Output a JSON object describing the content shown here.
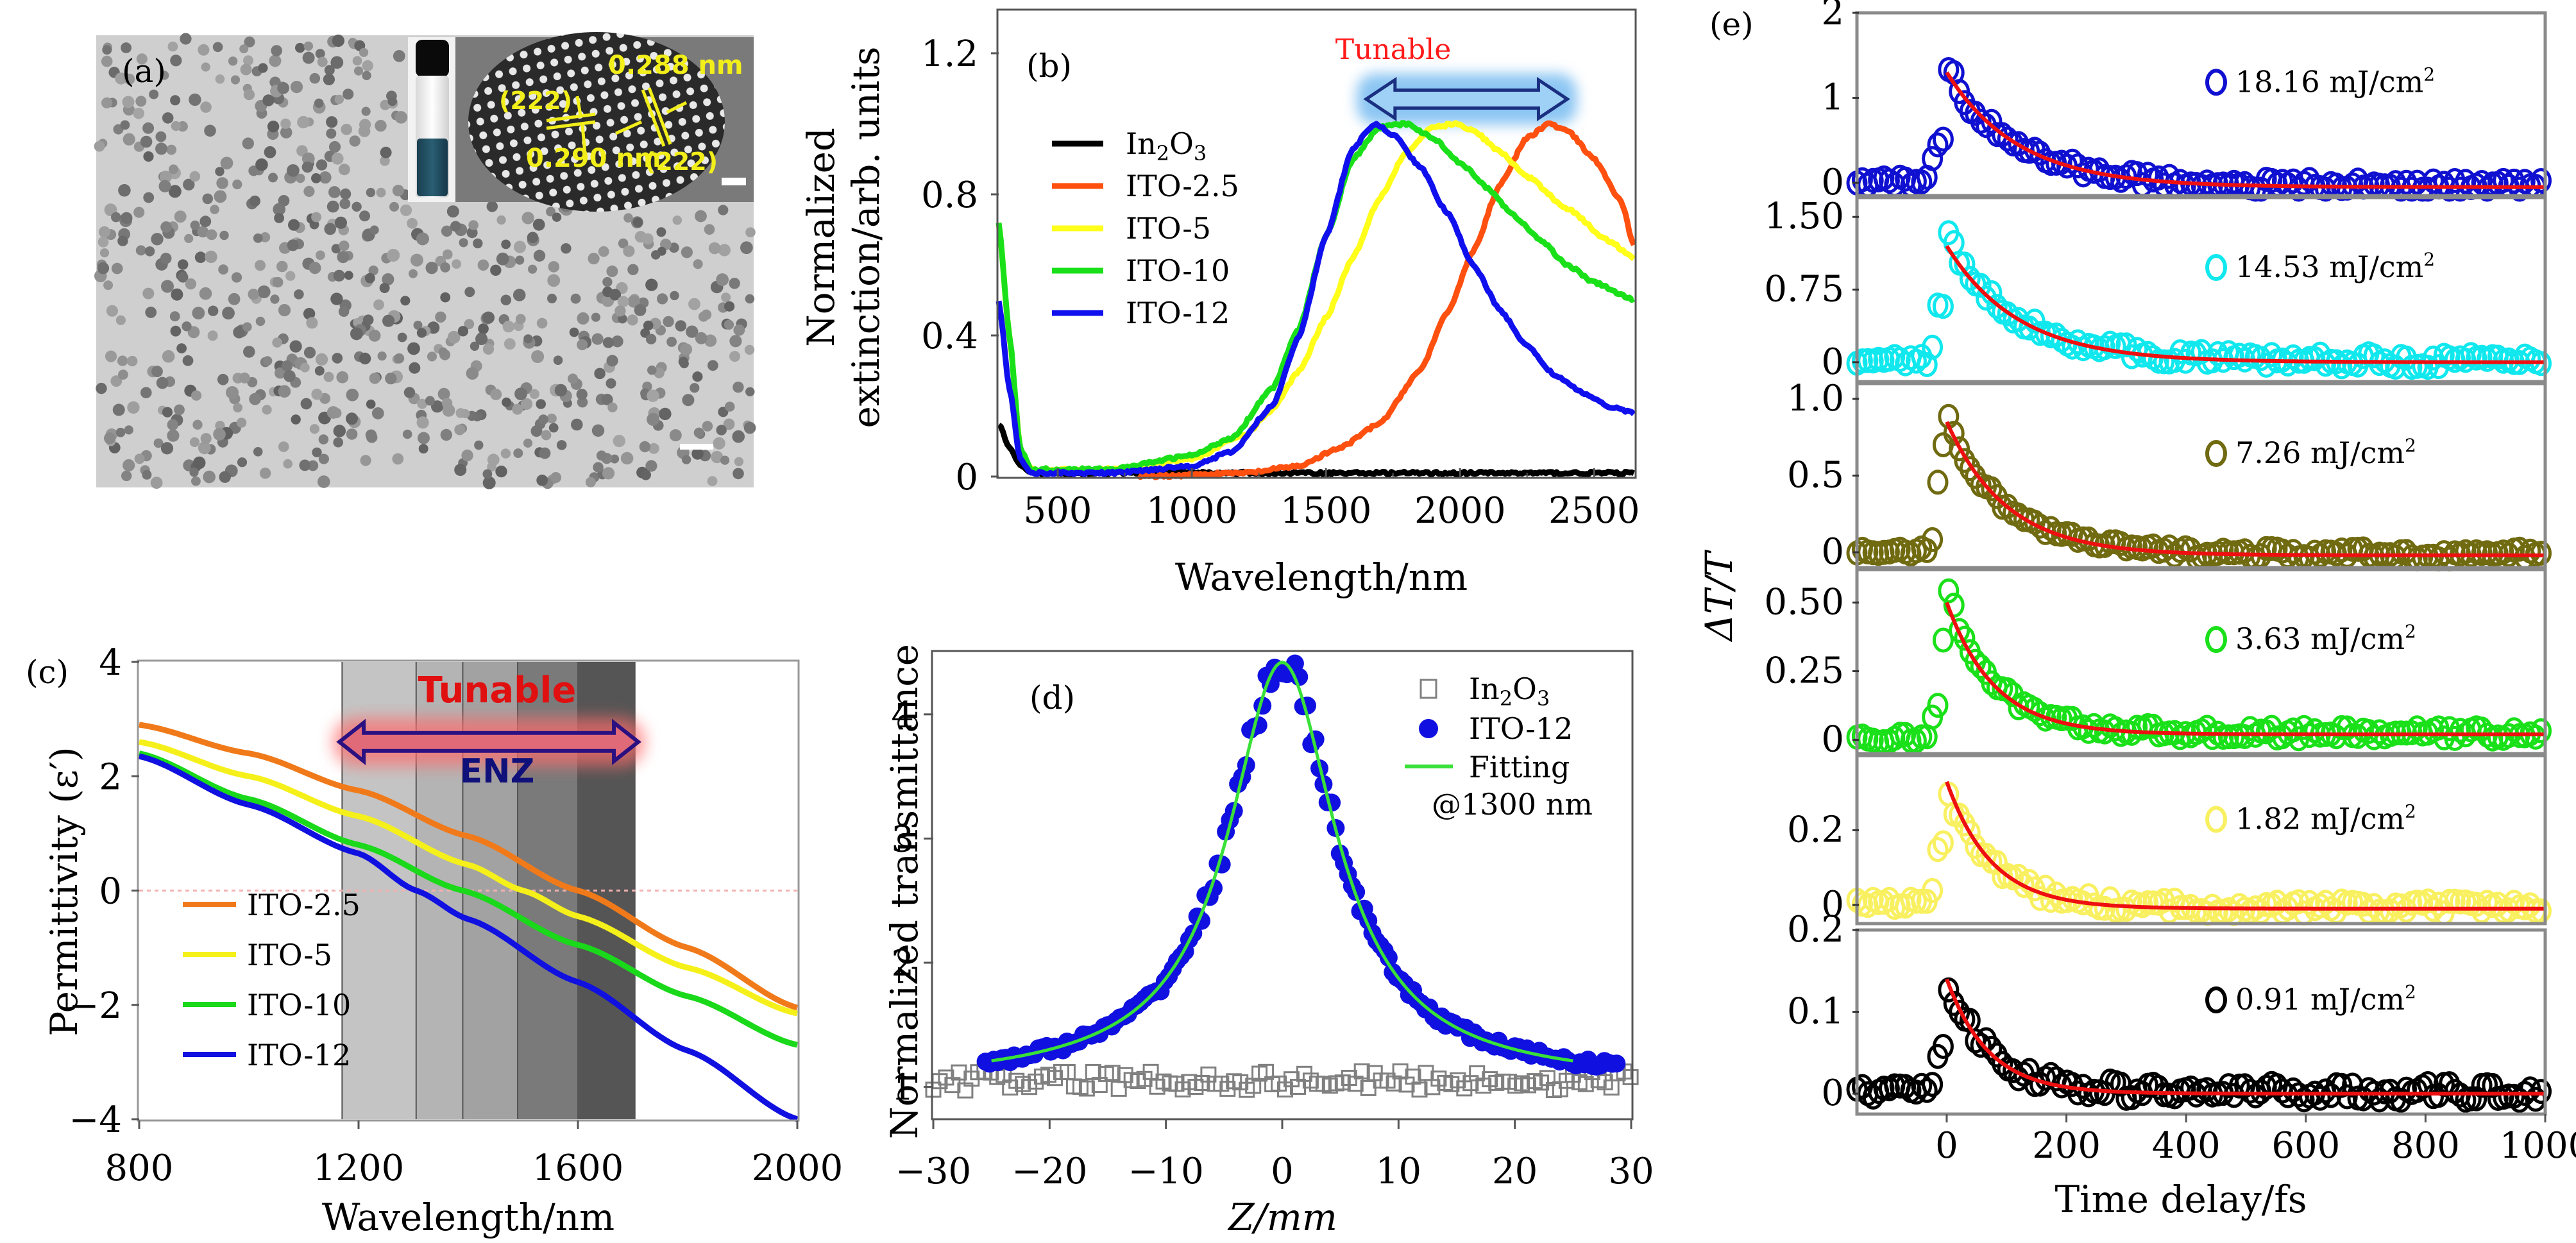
{
  "figure": {
    "panels": [
      "(a)",
      "(b)",
      "(c)",
      "(d)",
      "(e)"
    ]
  },
  "panel_a": {
    "label": "(a)",
    "description": "TEM image of nanocrystals with inset vial photo and HRTEM lattice image",
    "annotations": [
      "0.288 nm",
      "(222)",
      "(222)",
      "0.290 nm"
    ],
    "annotation_color": "#f2ee1a",
    "vial_liquid_color": "#1f4a5c"
  },
  "chart_data": [
    {
      "id": "b",
      "type": "line",
      "panel_label": "(b)",
      "title": "",
      "xlabel": "Wavelength/nm",
      "ylabel": "Normalized extinction/arb. units",
      "xlim": [
        280,
        2650
      ],
      "ylim": [
        0,
        1.3
      ],
      "xticks": [
        500,
        1000,
        1500,
        2000,
        2500
      ],
      "yticks": [
        0,
        0.4,
        0.8,
        1.2
      ],
      "ytick_labels": [
        "0",
        "0.4",
        "0.8",
        "1.2"
      ],
      "annotation": {
        "text": "Tunable",
        "color": "#ff1a1a",
        "arrow_from": 1650,
        "arrow_to": 2400,
        "arrow_y": 1.07
      },
      "legend_position": "upper-left",
      "series": [
        {
          "name": "In2O3",
          "label_main": "In",
          "label_sub1": "2",
          "label_mid": "O",
          "label_sub2": "3",
          "color": "#000000",
          "x": [
            280,
            320,
            360,
            400,
            450,
            600,
            1000,
            1500,
            2000,
            2300,
            2650
          ],
          "y": [
            0.15,
            0.08,
            0.03,
            0.01,
            0.01,
            0.01,
            0.01,
            0.01,
            0.01,
            0.01,
            0.01
          ]
        },
        {
          "name": "ITO-2.5",
          "color": "#ff5010",
          "x": [
            800,
            1200,
            1400,
            1550,
            1700,
            1850,
            1950,
            2050,
            2150,
            2250,
            2330,
            2400,
            2500,
            2600,
            2650
          ],
          "y": [
            0.0,
            0.01,
            0.03,
            0.08,
            0.15,
            0.3,
            0.46,
            0.64,
            0.83,
            0.96,
            1.0,
            0.98,
            0.9,
            0.78,
            0.65
          ]
        },
        {
          "name": "ITO-5",
          "color": "#ffff1a",
          "x": [
            280,
            320,
            360,
            400,
            450,
            700,
            1000,
            1200,
            1300,
            1400,
            1500,
            1600,
            1700,
            1800,
            1900,
            1980,
            2050,
            2150,
            2250,
            2400,
            2550,
            2650
          ],
          "y": [
            0.72,
            0.4,
            0.08,
            0.02,
            0.02,
            0.02,
            0.05,
            0.12,
            0.19,
            0.3,
            0.45,
            0.62,
            0.79,
            0.92,
            0.99,
            1.0,
            0.98,
            0.92,
            0.85,
            0.76,
            0.67,
            0.62
          ]
        },
        {
          "name": "ITO-10",
          "color": "#1ae01a",
          "x": [
            280,
            320,
            360,
            400,
            450,
            700,
            1000,
            1150,
            1300,
            1400,
            1500,
            1600,
            1700,
            1800,
            1900,
            2000,
            2100,
            2200,
            2300,
            2400,
            2500,
            2650
          ],
          "y": [
            0.72,
            0.4,
            0.08,
            0.02,
            0.02,
            0.02,
            0.06,
            0.11,
            0.25,
            0.42,
            0.68,
            0.9,
            0.99,
            1.0,
            0.96,
            0.89,
            0.82,
            0.74,
            0.67,
            0.6,
            0.55,
            0.5
          ]
        },
        {
          "name": "ITO-12",
          "color": "#1010ee",
          "x": [
            280,
            320,
            360,
            400,
            450,
            700,
            1000,
            1150,
            1300,
            1400,
            1500,
            1600,
            1680,
            1750,
            1850,
            1950,
            2050,
            2150,
            2250,
            2350,
            2450,
            2550,
            2650
          ],
          "y": [
            0.5,
            0.25,
            0.05,
            0.01,
            0.01,
            0.01,
            0.03,
            0.07,
            0.2,
            0.4,
            0.68,
            0.93,
            1.0,
            0.97,
            0.88,
            0.75,
            0.6,
            0.47,
            0.37,
            0.29,
            0.24,
            0.2,
            0.18
          ]
        }
      ]
    },
    {
      "id": "c",
      "type": "line",
      "panel_label": "(c)",
      "title": "",
      "xlabel": "Wavelength/nm",
      "ylabel": "Permittivity (ε′)",
      "xlim": [
        800,
        2000
      ],
      "ylim": [
        -4,
        4
      ],
      "xticks": [
        800,
        1200,
        1600,
        2000
      ],
      "yticks": [
        -4,
        -2,
        0,
        2,
        4
      ],
      "ytick_labels": [
        "−4",
        "−2",
        "0",
        "2",
        "4"
      ],
      "zero_line_color": "#f4b0b0",
      "shaded_bands": [
        {
          "from": 1170,
          "to": 1305,
          "color": "#c4c4c4"
        },
        {
          "from": 1305,
          "to": 1390,
          "color": "#b4b4b4"
        },
        {
          "from": 1390,
          "to": 1490,
          "color": "#a2a2a2"
        },
        {
          "from": 1490,
          "to": 1600,
          "color": "#7a7a7a"
        },
        {
          "from": 1600,
          "to": 1705,
          "color": "#555555"
        }
      ],
      "annotations": [
        {
          "text": "Tunable",
          "color": "#e01010"
        },
        {
          "text": "ENZ",
          "color": "#10107a"
        }
      ],
      "arrow": {
        "from": 1165,
        "to": 1710,
        "y": 2.6
      },
      "legend_position": "lower-left",
      "series": [
        {
          "name": "ITO-2.5",
          "color": "#f07a1a",
          "x": [
            800,
            1000,
            1200,
            1400,
            1600,
            1800,
            2000
          ],
          "y": [
            2.9,
            2.4,
            1.75,
            0.95,
            0.0,
            -1.0,
            -2.05
          ]
        },
        {
          "name": "ITO-5",
          "color": "#f5f01a",
          "x": [
            800,
            1000,
            1200,
            1400,
            1500,
            1600,
            1800,
            2000
          ],
          "y": [
            2.6,
            2.0,
            1.3,
            0.45,
            0.0,
            -0.45,
            -1.35,
            -2.15
          ]
        },
        {
          "name": "ITO-10",
          "color": "#1ad81a",
          "x": [
            800,
            1000,
            1200,
            1390,
            1600,
            1800,
            2000
          ],
          "y": [
            2.4,
            1.6,
            0.8,
            0.0,
            -0.95,
            -1.85,
            -2.7
          ]
        },
        {
          "name": "ITO-12",
          "color": "#1010e0",
          "x": [
            800,
            1000,
            1200,
            1305,
            1400,
            1600,
            1800,
            2000
          ],
          "y": [
            2.35,
            1.5,
            0.65,
            0.0,
            -0.5,
            -1.6,
            -2.8,
            -4.0
          ]
        }
      ]
    },
    {
      "id": "d",
      "type": "scatter",
      "panel_label": "(d)",
      "title": "",
      "xlabel": "Z/mm",
      "ylabel": "Normalized transmittance",
      "xlim": [
        -30,
        30
      ],
      "ylim": [
        0.75,
        4.5
      ],
      "xticks": [
        -30,
        -20,
        -10,
        0,
        10,
        20,
        30
      ],
      "xtick_labels": [
        "−30",
        "−20",
        "−10",
        "0",
        "10",
        "20",
        "30"
      ],
      "yticks": [
        1,
        2,
        3,
        4
      ],
      "legend_position": "upper-right",
      "legend_note": "@1300 nm",
      "series": [
        {
          "name": "In2O3",
          "marker": "open-square",
          "color": "#808080",
          "x_range": [
            -30,
            30
          ],
          "mean": 1.05,
          "spread": 0.08
        },
        {
          "name": "ITO-12",
          "marker": "filled-circle",
          "color": "#1010e0",
          "x_range": [
            -25.5,
            29
          ],
          "peak": 4.3,
          "baseline": 1.0,
          "width": 5.6
        },
        {
          "name": "Fitting",
          "marker": "line",
          "color": "#3ae03a",
          "x_range": [
            -25,
            25
          ],
          "peak": 4.3,
          "baseline": 1.0,
          "width": 5.6
        }
      ]
    },
    {
      "id": "e",
      "type": "scatter",
      "panel_label": "(e)",
      "title": "",
      "xlabel": "Time delay/fs",
      "ylabel": "ΔT/T",
      "xlim": [
        -150,
        1000
      ],
      "xticks": [
        0,
        200,
        400,
        600,
        800,
        1000
      ],
      "fit_color": "#ee1010",
      "subplots": [
        {
          "fluence": "18.16 mJ/cm",
          "sup": "2",
          "color": "#1010d0",
          "ylim": [
            -0.15,
            2.0
          ],
          "yticks": [
            0,
            1,
            2
          ],
          "ytick_labels": [
            "0",
            "1",
            "2"
          ],
          "peak": 1.45,
          "fit_start": 1.3,
          "tau": 120,
          "noise": 0.1,
          "offset": -0.05
        },
        {
          "fluence": "14.53 mJ/cm",
          "sup": "2",
          "color": "#10e8ee",
          "ylim": [
            -0.2,
            1.7
          ],
          "yticks": [
            0,
            0.75,
            1.5
          ],
          "ytick_labels": [
            "0",
            "0.75",
            "1.50"
          ],
          "peak": 1.38,
          "fit_start": 1.2,
          "tau": 120,
          "noise": 0.1,
          "offset": 0.0
        },
        {
          "fluence": "7.26 mJ/cm",
          "sup": "2",
          "color": "#706a10",
          "ylim": [
            -0.1,
            1.1
          ],
          "yticks": [
            0,
            0.5,
            1.0
          ],
          "ytick_labels": [
            "0",
            "0.5",
            "1.0"
          ],
          "peak": 0.95,
          "fit_start": 0.85,
          "tau": 100,
          "noise": 0.05,
          "offset": -0.02
        },
        {
          "fluence": "3.63 mJ/cm",
          "sup": "2",
          "color": "#1ae01a",
          "ylim": [
            -0.05,
            0.62
          ],
          "yticks": [
            0,
            0.25,
            0.5
          ],
          "ytick_labels": [
            "0",
            "0.25",
            "0.50"
          ],
          "peak": 0.53,
          "fit_start": 0.5,
          "tau": 80,
          "noise": 0.03,
          "offset": 0.02
        },
        {
          "fluence": "1.82 mJ/cm",
          "sup": "2",
          "color": "#f8f060",
          "ylim": [
            -0.05,
            0.4
          ],
          "yticks": [
            0,
            0.2
          ],
          "ytick_labels": [
            "0",
            "0.2"
          ],
          "peak": 0.3,
          "fit_start": 0.33,
          "tau": 75,
          "noise": 0.025,
          "offset": -0.01
        },
        {
          "fluence": "0.91 mJ/cm",
          "sup": "2",
          "color": "#000000",
          "ylim": [
            -0.025,
            0.2
          ],
          "yticks": [
            0,
            0.1,
            0.2
          ],
          "ytick_labels": [
            "0",
            "0.1",
            "0.2"
          ],
          "peak": 0.14,
          "fit_start": 0.14,
          "tau": 70,
          "noise": 0.015,
          "offset": 0.0
        }
      ]
    }
  ]
}
